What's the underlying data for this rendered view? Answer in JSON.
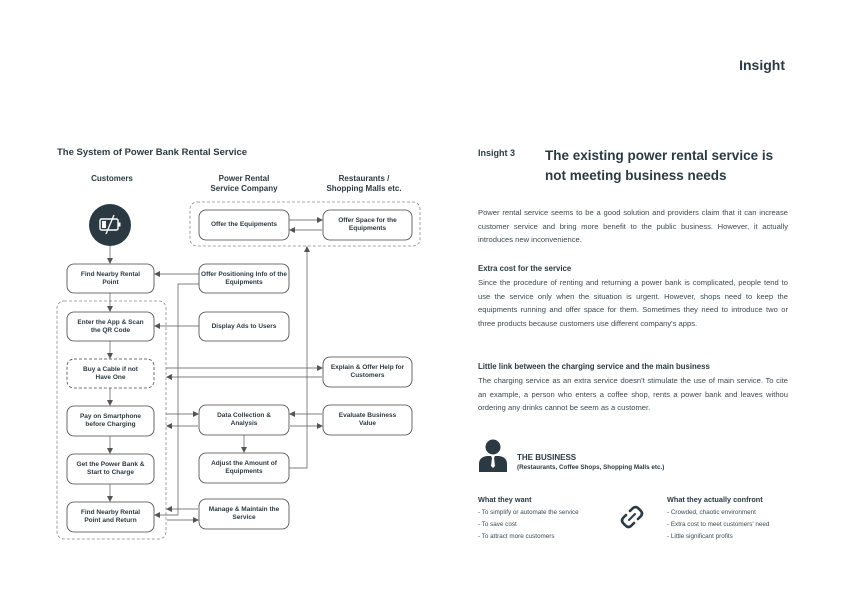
{
  "header": {
    "title": "Insight"
  },
  "diagram": {
    "title": "The System of Power Bank Rental Service",
    "columns": {
      "customers": "Customers",
      "company": "Power Rental\nService Company",
      "restaurants": "Restaurants /\nShopping Malls etc."
    },
    "nodes": {
      "offer_equipments": "Offer the Equipments",
      "offer_space": "Offer Space for the Equipments",
      "find_nearby": "Find Nearby Rental Point",
      "offer_positioning": "Offer Positioning Info of the Equipments",
      "enter_app": "Enter the App & Scan the QR Code",
      "display_ads": "Display Ads to Users",
      "buy_cable": "Buy a Cable if not Have One",
      "explain_offer": "Explain & Offer Help for Customers",
      "pay": "Pay on Smartphone before Charging",
      "data_collection": "Data Collection & Analysis",
      "evaluate": "Evaluate Business Value",
      "get_power_bank": "Get the Power Bank & Start to Charge",
      "adjust_amount": "Adjust the Amount of Equipments",
      "return": "Find Nearby Rental Point and Return",
      "manage": "Manage & Maintain the Service"
    }
  },
  "insight": {
    "label": "Insight 3",
    "title": "The existing power rental service is not meeting business needs",
    "intro": "Power rental service seems to be a good solution and providers claim that it can increase customer service and bring more benefit to the public business. However, it actually introduces new inconvenience.",
    "sections": [
      {
        "heading": "Extra cost for the service",
        "body": "Since the procedure of renting and returning a power bank is complicated, people tend to use the service only when the situation is urgent. However, shops need to keep the equipments running and offer space for them. Sometimes they need to introduce two or three products because customers use different company's apps."
      },
      {
        "heading": "Little link between the charging service and the main business",
        "body": "The charging service as an extra service doesn't stimulate the use of main service. To cite an example, a person who enters a coffee shop, rents a power bank and leaves withou ordering any drinks cannot be seem as a customer."
      }
    ]
  },
  "business": {
    "title": "THE BUSINESS",
    "subtitle": "(Restaurants, Coffee Shops, Shopping Malls etc.)",
    "wants_heading": "What they want",
    "wants": [
      "- To simplify or automate the service",
      "- To save cost",
      "- To attract more customers"
    ],
    "confront_heading": "What they actually confront",
    "confront": [
      "- Crowded, chaotic environment",
      "- Extra cost to meet customers' need",
      "- Little significant profits"
    ],
    "icons": {
      "person": "person-icon",
      "link": "broken-link-icon",
      "battery": "battery-low-icon"
    }
  },
  "colors": {
    "primary": "#2b3a42",
    "line": "#555555",
    "dashed": "#888888"
  }
}
